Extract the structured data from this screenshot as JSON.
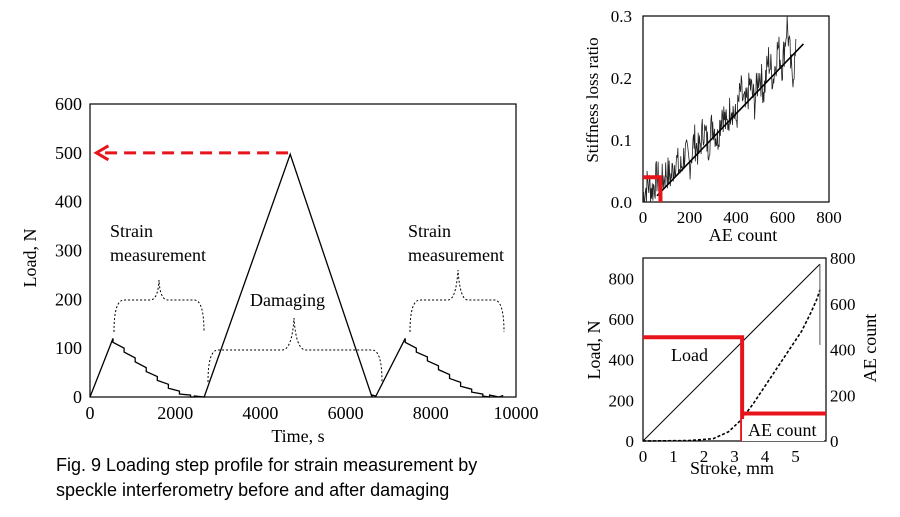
{
  "caption": {
    "line1": "Fig. 9  Loading step profile for strain measurement by",
    "line2": "speckle interferometry before and after damaging"
  },
  "chart_data": [
    {
      "type": "line",
      "xlabel": "Time, s",
      "ylabel": "Load, N",
      "xlim": [
        0,
        10000
      ],
      "ylim": [
        0,
        600
      ],
      "xticks": [
        0,
        2000,
        4000,
        6000,
        8000,
        10000
      ],
      "yticks": [
        0,
        100,
        200,
        300,
        400,
        500,
        600
      ],
      "annotations": {
        "strain_left_1": "Strain",
        "strain_left_2": "measurement",
        "strain_right_1": "Strain",
        "strain_right_2": "measurement",
        "damaging": "Damaging"
      },
      "colors": {
        "line": "#000000",
        "arrow": "#e8141c"
      },
      "series": [
        {
          "x": [
            0,
            540,
            540,
            800,
            800,
            1060,
            1060,
            1320,
            1320,
            1580,
            1580,
            1840,
            1840,
            2100,
            2100,
            2360,
            2360,
            2450,
            2450,
            2680,
            4700,
            6620,
            6620,
            6700,
            6700,
            7400,
            7400,
            7660,
            7660,
            7920,
            7920,
            8180,
            8180,
            8440,
            8440,
            8700,
            8700,
            8960,
            8960,
            9220,
            9220,
            9380,
            9380,
            9600,
            9700
          ],
          "y": [
            0,
            120,
            112,
            100,
            92,
            80,
            72,
            60,
            52,
            42,
            34,
            26,
            18,
            12,
            6,
            4,
            0,
            0,
            2,
            0,
            497,
            0,
            4,
            2,
            0,
            120,
            112,
            100,
            92,
            82,
            74,
            64,
            56,
            46,
            38,
            30,
            22,
            16,
            10,
            6,
            2,
            0,
            4,
            0,
            3
          ]
        }
      ],
      "arrow": {
        "from_time": 4650,
        "to_time": 150,
        "load": 500
      }
    },
    {
      "type": "line",
      "xlabel": "AE count",
      "ylabel": "Stiffness  loss ratio",
      "xlim": [
        0,
        800
      ],
      "ylim": [
        0,
        0.3
      ],
      "xticks": [
        0,
        200,
        400,
        600,
        800
      ],
      "yticks": [
        0.0,
        0.1,
        0.2,
        0.3
      ],
      "series": [
        {
          "x": [
            0,
            20,
            40,
            60,
            80,
            100,
            120,
            140,
            160,
            180,
            200,
            220,
            240,
            260,
            280,
            300,
            320,
            340,
            360,
            380,
            400,
            420,
            440,
            460,
            480,
            500,
            520,
            540,
            560,
            580,
            600,
            620,
            640,
            660
          ],
          "y": [
            0.01,
            0.03,
            0.02,
            0.04,
            0.03,
            0.05,
            0.04,
            0.07,
            0.05,
            0.08,
            0.06,
            0.1,
            0.08,
            0.12,
            0.09,
            0.13,
            0.1,
            0.15,
            0.12,
            0.16,
            0.13,
            0.18,
            0.15,
            0.19,
            0.16,
            0.21,
            0.18,
            0.23,
            0.2,
            0.25,
            0.22,
            0.29,
            0.2,
            0.24
          ]
        },
        {
          "x": [
            60,
            690
          ],
          "y": [
            0.01,
            0.255
          ]
        }
      ],
      "highlight": {
        "ae_count": 75,
        "ratio": 0.04,
        "color": "#e8141c"
      }
    },
    {
      "type": "line",
      "xlabel": "Stroke, mm",
      "ylabel": "Load, N",
      "y2label": "AE count",
      "xlim": [
        0,
        6
      ],
      "ylim": [
        0,
        900
      ],
      "y2lim": [
        0,
        800
      ],
      "xticks": [
        0,
        1,
        2,
        3,
        4,
        5
      ],
      "yticks": [
        0,
        200,
        400,
        600,
        800
      ],
      "y2ticks": [
        0,
        200,
        400,
        600,
        800
      ],
      "series": [
        {
          "name": "Load",
          "x": [
            0,
            5.8
          ],
          "y": [
            0,
            870
          ]
        },
        {
          "name": "AE count",
          "x": [
            0,
            1.5,
            2.3,
            2.8,
            3.2,
            3.6,
            4.0,
            4.4,
            4.8,
            5.2,
            5.5,
            5.7,
            5.8
          ],
          "y": [
            0,
            2,
            10,
            40,
            90,
            160,
            240,
            320,
            400,
            480,
            560,
            620,
            660
          ]
        }
      ],
      "highlight": {
        "stroke": 3.25,
        "load": 510,
        "ae_count": 120,
        "color": "#e8141c"
      }
    }
  ]
}
